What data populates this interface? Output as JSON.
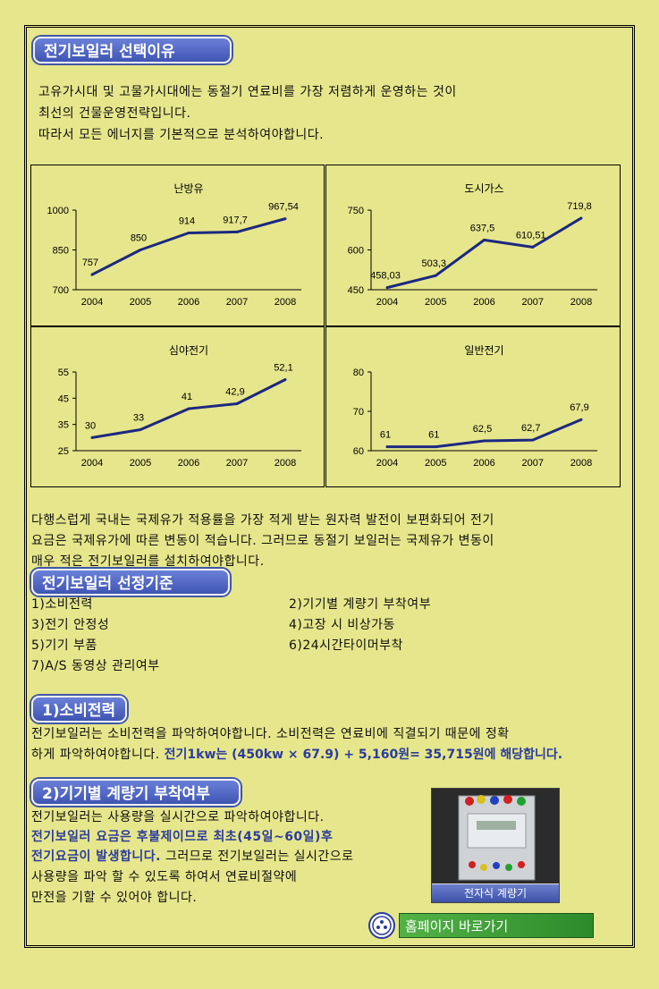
{
  "section1": {
    "title": "전기보일러 선택이유",
    "lines": [
      "고유가시대 및 고물가시대에는 동절기 연료비를 가장 저렴하게 운영하는 것이",
      "최선의 건물운영전략입니다.",
      "따라서 모든 에너지를 기본적으로 분석하여야합니다."
    ]
  },
  "chart_data": [
    {
      "type": "line",
      "title": "난방유",
      "categories": [
        "2004",
        "2005",
        "2006",
        "2007",
        "2008"
      ],
      "values": [
        757,
        850,
        914,
        917.7,
        967.54
      ],
      "labels": [
        "757",
        "850",
        "914",
        "917,7",
        "967,54"
      ],
      "ylim": [
        700,
        1000
      ],
      "yticks": [
        "700",
        "850",
        "1000"
      ],
      "color": "#1c2880"
    },
    {
      "type": "line",
      "title": "도시가스",
      "categories": [
        "2004",
        "2005",
        "2006",
        "2007",
        "2008"
      ],
      "values": [
        458.03,
        503.3,
        637.5,
        610.51,
        719.8
      ],
      "labels": [
        "458,03",
        "503,3",
        "637,5",
        "610,51",
        "719,8"
      ],
      "ylim": [
        450,
        750
      ],
      "yticks": [
        "450",
        "600",
        "750"
      ],
      "color": "#1c2880"
    },
    {
      "type": "line",
      "title": "심야전기",
      "categories": [
        "2004",
        "2005",
        "2006",
        "2007",
        "2008"
      ],
      "values": [
        30,
        33,
        41,
        42.9,
        52.1
      ],
      "labels": [
        "30",
        "33",
        "41",
        "42,9",
        "52,1"
      ],
      "ylim": [
        25,
        55
      ],
      "yticks": [
        "25",
        "35",
        "45",
        "55"
      ],
      "color": "#1c2880"
    },
    {
      "type": "line",
      "title": "일반전기",
      "categories": [
        "2004",
        "2005",
        "2006",
        "2007",
        "2008"
      ],
      "values": [
        61,
        61,
        62.5,
        62.7,
        67.9
      ],
      "labels": [
        "61",
        "61",
        "62,5",
        "62,7",
        "67,9"
      ],
      "ylim": [
        60,
        80
      ],
      "yticks": [
        "60",
        "70",
        "80"
      ],
      "color": "#1c2880"
    }
  ],
  "para2": [
    "다행스럽게 국내는 국제유가 적용률을 가장 적게 받는 원자력 발전이 보편화되어 전기",
    "요금은 국제유가에 따른 변동이 적습니다.  그러므로 동절기 보일러는 국제유가 변동이",
    "매우 적은 전기보일러를 설치하여야합니다."
  ],
  "section2": {
    "title": "전기보일러 선정기준",
    "items": [
      "1)소비전력",
      "2)기기별 계량기 부착여부",
      "3)전기 안정성",
      "4)고장 시 비상가동",
      "5)기기 부품",
      "6)24시간타이머부착",
      "7)A/S 동영상 관리여부"
    ]
  },
  "section3": {
    "title": "1)소비전력",
    "line1": "전기보일러는 소비전력을 파악하여야합니다. 소비전력은 연료비에 직결되기 때문에 정확",
    "line2a": "하게 파악하여야합니다.",
    "line2b": "전기1kw는 (450kw  × 67.9) + 5,160원= 35,715원에 해당합니다."
  },
  "section4": {
    "title": "2)기기별 계량기 부착여부",
    "line1": "전기보일러는 사용량을 실시간으로 파악하여야합니다.",
    "line2": "전기보일러 요금은 후불제이므로 최초(45일~60일)후",
    "line3a": "전기요금이 발생합니다.",
    "line3b": " 그러므로 전기보일러는 실시간으로",
    "line4": "사용량을 파악 할 수 있도록 하여서 연료비절약에",
    "line5": "만전을 기할 수 있어야 합니다.",
    "photo_caption": "전자식 계량기"
  },
  "home_link": "홈페이지 바로가기",
  "colors": {
    "background": "#e6e68c",
    "pill": "#4a5fc0",
    "highlight": "#2b3c9c",
    "series": "#1c2880",
    "home": "#3f9e38"
  }
}
